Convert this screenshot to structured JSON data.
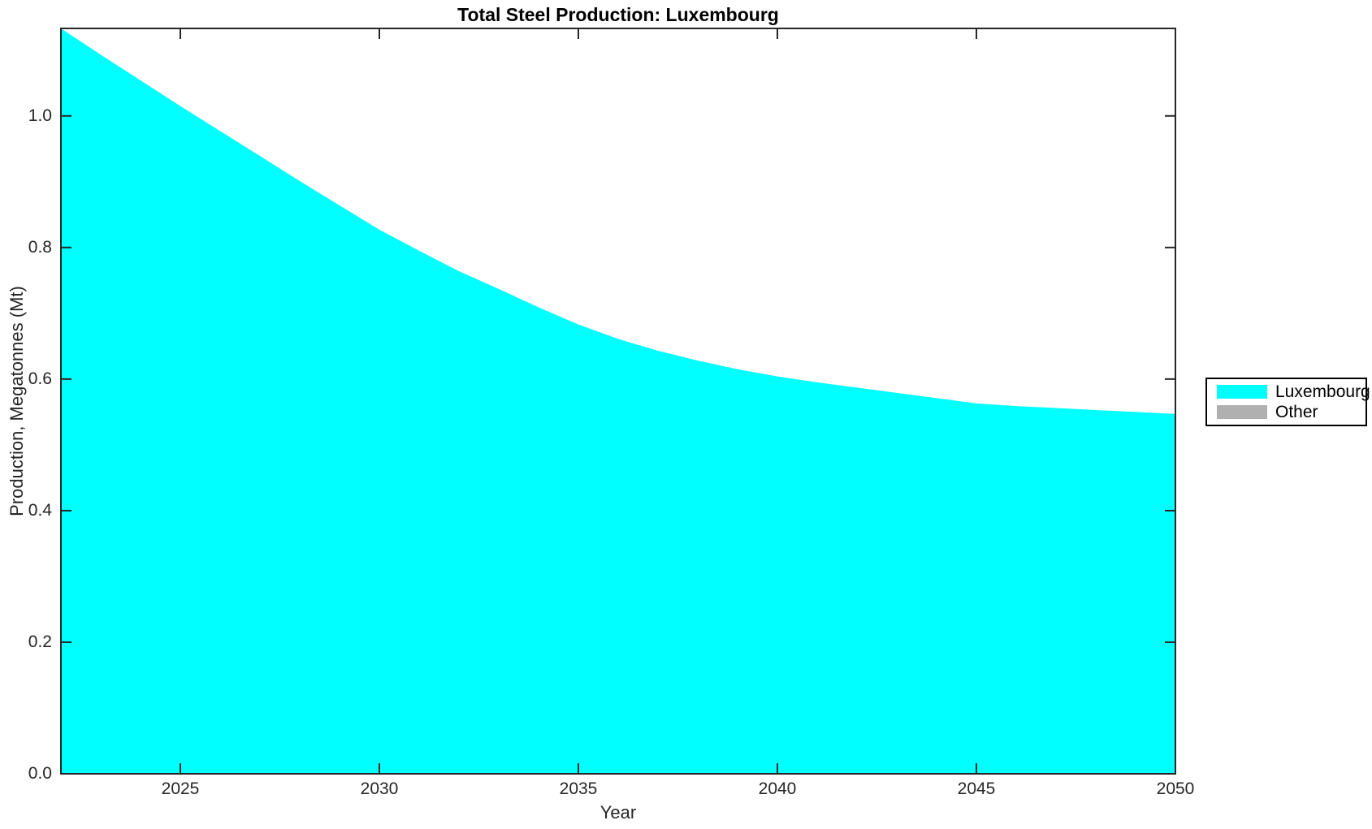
{
  "figure": {
    "title": "Total Steel Production: Luxembourg",
    "xlabel": "Year",
    "ylabel": "Production, Megatonnes (Mt)"
  },
  "legend": {
    "items": [
      {
        "label": "Luxembourg",
        "color": "#00ffff"
      },
      {
        "label": "Other",
        "color": "#b0b0b0"
      }
    ]
  },
  "chart_data": {
    "type": "area",
    "stacked": true,
    "title": "Total Steel Production: Luxembourg",
    "xlabel": "Year",
    "ylabel": "Production, Megatonnes (Mt)",
    "xlim": [
      2022,
      2050
    ],
    "ylim": [
      0,
      1.133
    ],
    "xticks": [
      2025,
      2030,
      2035,
      2040,
      2045,
      2050
    ],
    "xtick_labels": [
      "2025",
      "2030",
      "2035",
      "2040",
      "2045",
      "2050"
    ],
    "yticks": [
      0.0,
      0.2,
      0.4,
      0.6,
      0.8,
      1.0
    ],
    "ytick_labels": [
      "0.0",
      "0.2",
      "0.4",
      "0.6",
      "0.8",
      "1.0"
    ],
    "grid": false,
    "legend_position": "right-outside",
    "x": [
      2022,
      2023,
      2024,
      2025,
      2026,
      2027,
      2028,
      2029,
      2030,
      2031,
      2032,
      2033,
      2034,
      2035,
      2036,
      2037,
      2038,
      2039,
      2040,
      2041,
      2042,
      2043,
      2044,
      2045,
      2046,
      2047,
      2048,
      2049,
      2050
    ],
    "series": [
      {
        "name": "Luxembourg",
        "color": "#00ffff",
        "values": [
          1.133,
          1.093,
          1.054,
          1.015,
          0.977,
          0.939,
          0.901,
          0.864,
          0.827,
          0.795,
          0.764,
          0.737,
          0.709,
          0.683,
          0.661,
          0.643,
          0.628,
          0.615,
          0.604,
          0.595,
          0.587,
          0.579,
          0.571,
          0.563,
          0.559,
          0.556,
          0.553,
          0.55,
          0.547
        ]
      },
      {
        "name": "Other",
        "color": "#b0b0b0",
        "values": [
          0,
          0,
          0,
          0,
          0,
          0,
          0,
          0,
          0,
          0,
          0,
          0,
          0,
          0,
          0,
          0,
          0,
          0,
          0,
          0,
          0,
          0,
          0,
          0,
          0,
          0,
          0,
          0,
          0
        ]
      }
    ]
  }
}
